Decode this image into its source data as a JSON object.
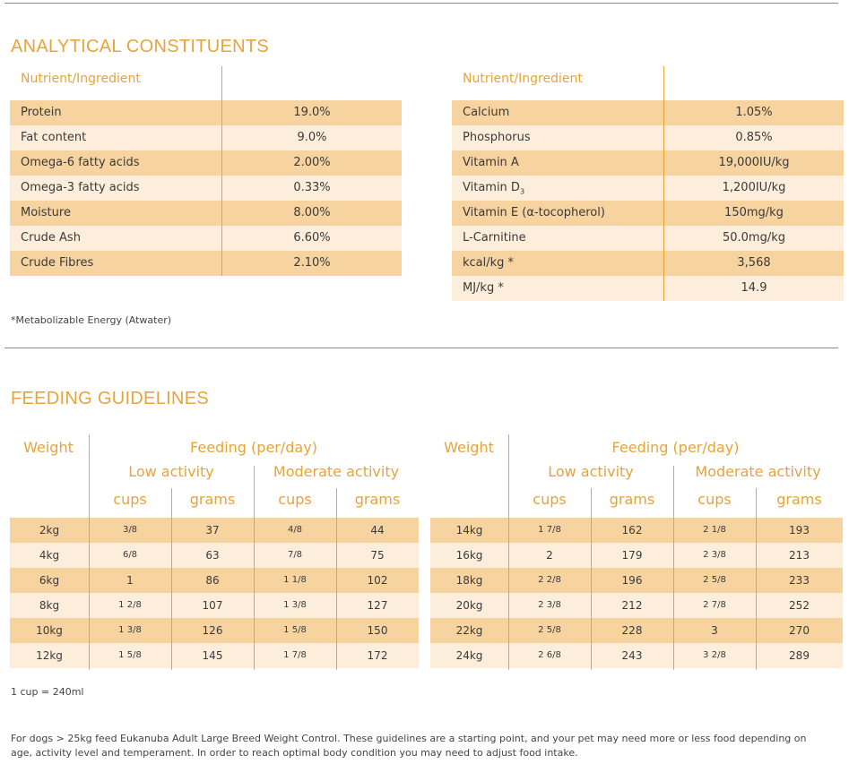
{
  "analytical": {
    "title": "ANALYTICAL CONSTITUENTS",
    "header_label": "Nutrient/Ingredient",
    "left_rows": [
      {
        "name": "Protein",
        "value": "19.0%"
      },
      {
        "name": "Fat content",
        "value": "9.0%"
      },
      {
        "name": "Omega-6 fatty acids",
        "value": "2.00%"
      },
      {
        "name": "Omega-3 fatty acids",
        "value": "0.33%"
      },
      {
        "name": "Moisture",
        "value": "8.00%"
      },
      {
        "name": "Crude Ash",
        "value": "6.60%"
      },
      {
        "name": "Crude Fibres",
        "value": "2.10%"
      }
    ],
    "right_rows": [
      {
        "name": "Calcium",
        "value": "1.05%"
      },
      {
        "name": "Phosphorus",
        "value": "0.85%"
      },
      {
        "name": "Vitamin A",
        "value": "19,000IU/kg"
      },
      {
        "name": "Vitamin D",
        "sub": "3",
        "value": "1,200IU/kg"
      },
      {
        "name": "Vitamin E (α-tocopherol)",
        "value": "150mg/kg"
      },
      {
        "name": "L-Carnitine",
        "value": "50.0mg/kg"
      },
      {
        "name": "kcal/kg *",
        "value": "3,568"
      },
      {
        "name": "MJ/kg *",
        "value": "14.9"
      }
    ],
    "footnote": "*Metabolizable Energy (Atwater)"
  },
  "feeding": {
    "title": "FEEDING GUIDELINES",
    "weight_label": "Weight",
    "feeding_label": "Feeding (per/day)",
    "low_label": "Low activity",
    "moderate_label": "Moderate activity",
    "cups_label": "cups",
    "grams_label": "grams",
    "left_rows": [
      {
        "weight": "2kg",
        "low_cups": "3/8",
        "low_grams": "37",
        "mod_cups": "4/8",
        "mod_grams": "44"
      },
      {
        "weight": "4kg",
        "low_cups": "6/8",
        "low_grams": "63",
        "mod_cups": "7/8",
        "mod_grams": "75"
      },
      {
        "weight": "6kg",
        "low_cups": "1",
        "low_grams": "86",
        "mod_cups": "1 1/8",
        "mod_grams": "102"
      },
      {
        "weight": "8kg",
        "low_cups": "1 2/8",
        "low_grams": "107",
        "mod_cups": "1 3/8",
        "mod_grams": "127"
      },
      {
        "weight": "10kg",
        "low_cups": "1 3/8",
        "low_grams": "126",
        "mod_cups": "1 5/8",
        "mod_grams": "150"
      },
      {
        "weight": "12kg",
        "low_cups": "1 5/8",
        "low_grams": "145",
        "mod_cups": "1 7/8",
        "mod_grams": "172"
      }
    ],
    "right_rows": [
      {
        "weight": "14kg",
        "low_cups": "1 7/8",
        "low_grams": "162",
        "mod_cups": "2 1/8",
        "mod_grams": "193"
      },
      {
        "weight": "16kg",
        "low_cups": "2",
        "low_grams": "179",
        "mod_cups": "2 3/8",
        "mod_grams": "213"
      },
      {
        "weight": "18kg",
        "low_cups": "2 2/8",
        "low_grams": "196",
        "mod_cups": "2 5/8",
        "mod_grams": "233"
      },
      {
        "weight": "20kg",
        "low_cups": "2 3/8",
        "low_grams": "212",
        "mod_cups": "2 7/8",
        "mod_grams": "252"
      },
      {
        "weight": "22kg",
        "low_cups": "2 5/8",
        "low_grams": "228",
        "mod_cups": "3",
        "mod_grams": "270"
      },
      {
        "weight": "24kg",
        "low_cups": "2 6/8",
        "low_grams": "243",
        "mod_cups": "3 2/8",
        "mod_grams": "289"
      }
    ],
    "cup_note": "1 cup = 240ml",
    "footer_note": "For dogs > 25kg feed Eukanuba Adult Large Breed Weight Control. These guidelines are a starting point, and your pet may need more or less food depending on age, activity level and temperament. In order to reach optimal body condition you may need to adjust food intake."
  },
  "colors": {
    "accent": "#e8a33a",
    "row_dark": "#f7d3a0",
    "row_light": "#fdeedb"
  }
}
